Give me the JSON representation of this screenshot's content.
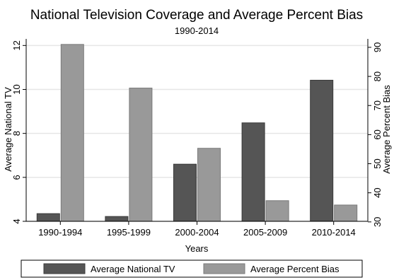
{
  "chart_data": {
    "type": "bar",
    "title": "National Television Coverage and Average Percent Bias",
    "subtitle": "1990-2014",
    "xlabel": "Years",
    "ylabel_left": "Average National TV",
    "ylabel_right": "Average Percent Bias",
    "categories": [
      "1990-1994",
      "1995-1999",
      "2000-2004",
      "2005-2009",
      "2010-2014"
    ],
    "series": [
      {
        "name": "Average National TV",
        "axis": "left",
        "color": "#555555",
        "values": [
          4.35,
          4.22,
          6.6,
          8.48,
          10.42
        ]
      },
      {
        "name": "Average Percent Bias",
        "axis": "right",
        "color": "#999999",
        "values": [
          91,
          76,
          55.3,
          37.3,
          35.8
        ]
      }
    ],
    "ylim_left": [
      4,
      12.3
    ],
    "yticks_left": [
      4,
      6,
      8,
      10,
      12
    ],
    "ylim_right": [
      30.2,
      92.9
    ],
    "yticks_right": [
      30,
      40,
      50,
      60,
      70,
      80,
      90
    ],
    "grid": true,
    "legend_position": "bottom"
  }
}
